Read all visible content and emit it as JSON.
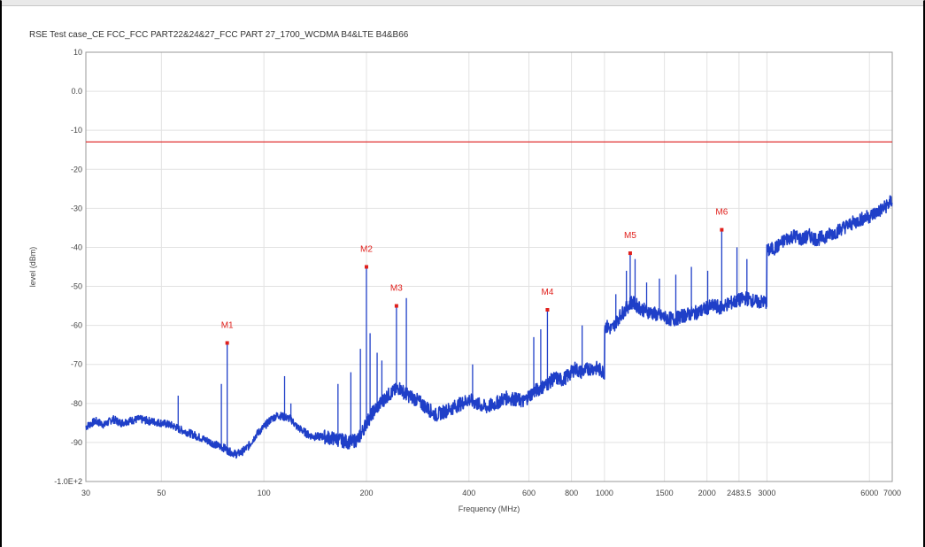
{
  "chart_data": {
    "type": "line",
    "title": "RSE Test case_CE FCC_FCC PART22&24&27_FCC PART 27_1700_WCDMA B4&LTE B4&B66",
    "xlabel": "Frequency (MHz)",
    "ylabel": "level (dBm)",
    "xscale": "log",
    "xlim": [
      30,
      7000
    ],
    "ylim": [
      -100,
      10
    ],
    "x_ticks": [
      30,
      50,
      100,
      200,
      400,
      600,
      800,
      1000,
      1500,
      2000,
      2483.5,
      3000,
      6000,
      7000
    ],
    "x_tick_labels": [
      "30",
      "50",
      "100",
      "200",
      "400",
      "600",
      "800",
      "1000",
      "1500",
      "2000",
      "2483.5",
      "3000",
      "6000",
      "7000"
    ],
    "y_ticks": [
      10,
      0,
      -10,
      -20,
      -30,
      -40,
      -50,
      -60,
      -70,
      -80,
      -90,
      -100
    ],
    "y_tick_labels": [
      "10",
      "0.0",
      "-10",
      "-20",
      "-30",
      "-40",
      "-50",
      "-60",
      "-70",
      "-80",
      "-90",
      "-1.0E+2"
    ],
    "grid": true,
    "limit_line": {
      "value": -13,
      "color": "#e03030"
    },
    "series": [
      {
        "color": "#1f3fc8",
        "x": [
          30,
          32,
          34,
          36,
          38,
          40,
          43,
          46,
          50,
          53,
          55,
          56,
          58,
          62,
          66,
          70,
          74,
          77,
          78,
          80,
          83,
          86,
          90,
          95,
          100,
          105,
          110,
          115,
          120,
          125,
          130,
          135,
          140,
          150,
          160,
          170,
          180,
          190,
          200,
          210,
          220,
          230,
          240,
          250,
          260,
          280,
          300,
          320,
          340,
          360,
          380,
          400,
          420,
          450,
          480,
          500,
          520,
          550,
          580,
          600,
          620,
          650,
          680,
          700,
          720,
          750,
          780,
          800,
          820,
          850,
          880,
          900,
          950,
          1000,
          1000,
          1050,
          1100,
          1150,
          1200,
          1250,
          1300,
          1400,
          1500,
          1600,
          1700,
          1800,
          1900,
          2000,
          2100,
          2200,
          2300,
          2400,
          2500,
          2600,
          2800,
          3000,
          3000,
          3200,
          3400,
          3600,
          3800,
          4000,
          4200,
          4500,
          4800,
          5000,
          5300,
          5600,
          6000,
          6300,
          6600,
          7000
        ],
        "y": [
          -86,
          -84.5,
          -85.5,
          -84,
          -85,
          -84.5,
          -84,
          -84.5,
          -85,
          -85.5,
          -86,
          -86.5,
          -87,
          -88,
          -89,
          -90,
          -91,
          -91.5,
          -92,
          -92.5,
          -93,
          -92.5,
          -91,
          -88,
          -86,
          -84,
          -83,
          -83.5,
          -84,
          -86,
          -87,
          -88,
          -88.5,
          -88.5,
          -89,
          -89.5,
          -90,
          -89,
          -85,
          -82,
          -80,
          -78,
          -77,
          -76,
          -77.5,
          -79,
          -81,
          -83,
          -82,
          -81,
          -80,
          -79,
          -80,
          -81,
          -80,
          -79,
          -78.5,
          -79,
          -79.5,
          -78,
          -77,
          -76,
          -75,
          -74,
          -73.5,
          -74,
          -73,
          -72,
          -71,
          -72,
          -71.5,
          -71,
          -71,
          -72,
          -60,
          -61,
          -58,
          -56,
          -54,
          -55,
          -56,
          -57,
          -58,
          -58.5,
          -57.5,
          -57,
          -56.5,
          -55.5,
          -55,
          -55.5,
          -54.5,
          -54,
          -53.5,
          -53,
          -54,
          -54,
          -41,
          -40,
          -38,
          -37,
          -38,
          -37,
          -38,
          -37,
          -36,
          -35,
          -34,
          -33,
          -32,
          -31,
          -30,
          -28
        ]
      }
    ],
    "spikes": [
      {
        "x": 56,
        "y": -78
      },
      {
        "x": 75,
        "y": -75
      },
      {
        "x": 78,
        "y": -64.5
      },
      {
        "x": 115,
        "y": -73
      },
      {
        "x": 120,
        "y": -80
      },
      {
        "x": 165,
        "y": -75
      },
      {
        "x": 180,
        "y": -72
      },
      {
        "x": 192,
        "y": -66
      },
      {
        "x": 200,
        "y": -45
      },
      {
        "x": 205,
        "y": -62
      },
      {
        "x": 215,
        "y": -67
      },
      {
        "x": 222,
        "y": -69
      },
      {
        "x": 245,
        "y": -55
      },
      {
        "x": 262,
        "y": -53
      },
      {
        "x": 410,
        "y": -70
      },
      {
        "x": 620,
        "y": -63
      },
      {
        "x": 650,
        "y": -61
      },
      {
        "x": 680,
        "y": -56
      },
      {
        "x": 860,
        "y": -60
      },
      {
        "x": 1080,
        "y": -52
      },
      {
        "x": 1160,
        "y": -46
      },
      {
        "x": 1190,
        "y": -41.5
      },
      {
        "x": 1230,
        "y": -43
      },
      {
        "x": 1330,
        "y": -49
      },
      {
        "x": 1450,
        "y": -48
      },
      {
        "x": 1620,
        "y": -47
      },
      {
        "x": 1800,
        "y": -45
      },
      {
        "x": 2010,
        "y": -46
      },
      {
        "x": 2210,
        "y": -35.5
      },
      {
        "x": 2450,
        "y": -40
      },
      {
        "x": 2620,
        "y": -43
      }
    ],
    "markers": [
      {
        "label": "M1",
        "x": 78,
        "y": -64.5
      },
      {
        "label": "M2",
        "x": 200,
        "y": -45
      },
      {
        "label": "M3",
        "x": 245,
        "y": -55
      },
      {
        "label": "M4",
        "x": 680,
        "y": -56
      },
      {
        "label": "M5",
        "x": 1190,
        "y": -41.5
      },
      {
        "label": "M6",
        "x": 2210,
        "y": -35.5
      }
    ]
  }
}
